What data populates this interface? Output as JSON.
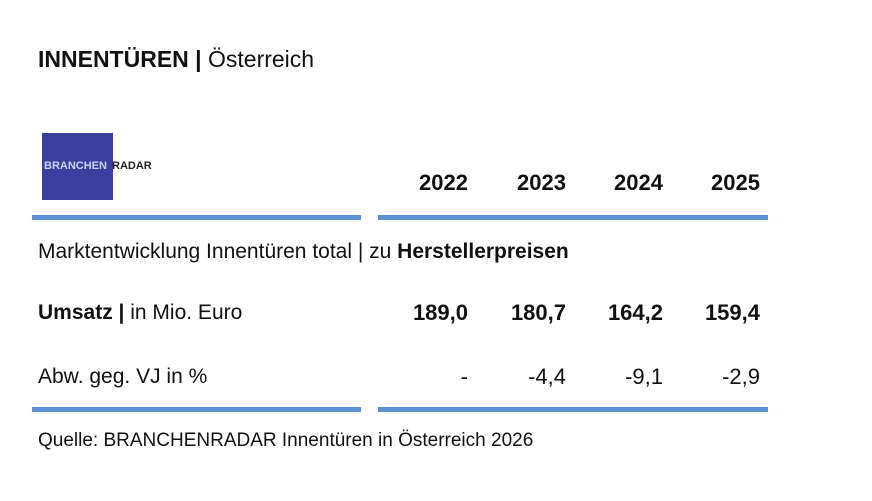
{
  "header": {
    "title_bold": "INNENTÜREN |",
    "title_regular": "Österreich"
  },
  "logo": {
    "part1": "BRANCHEN",
    "part2": "RADAR"
  },
  "table": {
    "columns": [
      "2022",
      "2023",
      "2024",
      "2025"
    ],
    "subtitle_regular": "Marktentwicklung Innentüren total | zu",
    "subtitle_bold": "Herstellerpreisen",
    "rows": [
      {
        "label_bold": "Umsatz |",
        "label": "in Mio. Euro",
        "values": [
          "189,0",
          "180,7",
          "164,2",
          "159,4"
        ]
      },
      {
        "label": "Abw. geg. VJ in %",
        "values": [
          "-",
          "-4,4",
          "-9,1",
          "-2,9"
        ]
      }
    ]
  },
  "source": "Quelle: BRANCHENRADAR Innentüren in Österreich 2026"
}
